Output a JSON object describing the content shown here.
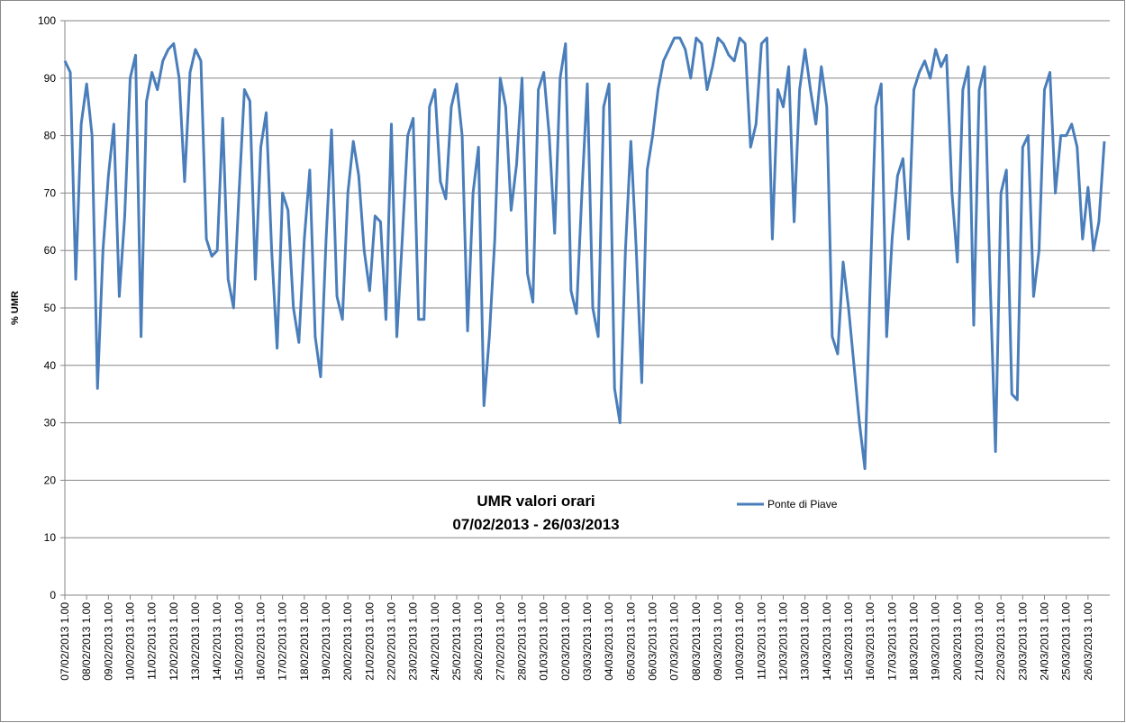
{
  "chart_data": {
    "type": "line",
    "title": "UMR valori orari",
    "subtitle": "07/02/2013 - 26/03/2013",
    "y_label": "% UMR",
    "ylim": [
      0,
      100
    ],
    "yticks": [
      0,
      10,
      20,
      30,
      40,
      50,
      60,
      70,
      80,
      90,
      100
    ],
    "grid": true,
    "legend": "center",
    "categories": [
      "07/02/2013 1.00",
      null,
      null,
      null,
      "08/02/2013 1.00",
      null,
      null,
      null,
      "09/02/2013 1.00",
      null,
      null,
      null,
      "10/02/2013 1.00",
      null,
      null,
      null,
      "11/02/2013 1.00",
      null,
      null,
      null,
      "12/02/2013 1.00",
      null,
      null,
      null,
      "13/02/2013 1.00",
      null,
      null,
      null,
      "14/02/2013 1.00",
      null,
      null,
      null,
      "15/02/2013 1.00",
      null,
      null,
      null,
      "16/02/2013 1.00",
      null,
      null,
      null,
      "17/02/2013 1.00",
      null,
      null,
      null,
      "18/02/2013 1.00",
      null,
      null,
      null,
      "19/02/2013 1.00",
      null,
      null,
      null,
      "20/02/2013 1.00",
      null,
      null,
      null,
      "21/02/2013 1.00",
      null,
      null,
      null,
      "22/02/2013 1.00",
      null,
      null,
      null,
      "23/02/2013 1.00",
      null,
      null,
      null,
      "24/02/2013 1.00",
      null,
      null,
      null,
      "25/02/2013 1.00",
      null,
      null,
      null,
      "26/02/2013 1.00",
      null,
      null,
      null,
      "27/02/2013 1.00",
      null,
      null,
      null,
      "28/02/2013 1.00",
      null,
      null,
      null,
      "01/03/2013 1.00",
      null,
      null,
      null,
      "02/03/2013 1.00",
      null,
      null,
      null,
      "03/03/2013 1.00",
      null,
      null,
      null,
      "04/03/2013 1.00",
      null,
      null,
      null,
      "05/03/2013 1.00",
      null,
      null,
      null,
      "06/03/2013 1.00",
      null,
      null,
      null,
      "07/03/2013 1.00",
      null,
      null,
      null,
      "08/03/2013 1.00",
      null,
      null,
      null,
      "09/03/2013 1.00",
      null,
      null,
      null,
      "10/03/2013 1.00",
      null,
      null,
      null,
      "11/03/2013 1.00",
      null,
      null,
      null,
      "12/03/2013 1.00",
      null,
      null,
      null,
      "13/03/2013 1.00",
      null,
      null,
      null,
      "14/03/2013 1.00",
      null,
      null,
      null,
      "15/03/2013 1.00",
      null,
      null,
      null,
      "16/03/2013 1.00",
      null,
      null,
      null,
      "17/03/2013 1.00",
      null,
      null,
      null,
      "18/03/2013 1.00",
      null,
      null,
      null,
      "19/03/2013 1.00",
      null,
      null,
      null,
      "20/03/2013 1.00",
      null,
      null,
      null,
      "21/03/2013 1.00",
      null,
      null,
      null,
      "22/03/2013 1.00",
      null,
      null,
      null,
      "23/03/2013 1.00",
      null,
      null,
      null,
      "24/03/2013 1.00",
      null,
      null,
      null,
      "25/03/2013 1.00",
      null,
      null,
      null,
      "26/03/2013 1.00",
      null,
      null,
      null
    ],
    "series": [
      {
        "name": "Ponte di Piave",
        "color": "#4a7ebb",
        "values": [
          93,
          91,
          55,
          82,
          89,
          80,
          36,
          60,
          73,
          82,
          52,
          66,
          90,
          94,
          45,
          86,
          91,
          88,
          93,
          95,
          96,
          90,
          72,
          91,
          95,
          93,
          62,
          59,
          60,
          83,
          55,
          50,
          70,
          88,
          86,
          55,
          78,
          84,
          60,
          43,
          70,
          67,
          50,
          44,
          62,
          74,
          45,
          38,
          62,
          81,
          52,
          48,
          70,
          79,
          73,
          60,
          53,
          66,
          65,
          48,
          82,
          45,
          62,
          80,
          83,
          48,
          48,
          85,
          88,
          72,
          69,
          85,
          89,
          80,
          46,
          70,
          78,
          33,
          45,
          62,
          90,
          85,
          67,
          75,
          90,
          56,
          51,
          88,
          91,
          80,
          63,
          90,
          96,
          53,
          49,
          70,
          89,
          50,
          45,
          85,
          89,
          36,
          30,
          60,
          79,
          60,
          37,
          74,
          80,
          88,
          93,
          95,
          97,
          97,
          95,
          90,
          97,
          96,
          88,
          92,
          97,
          96,
          94,
          93,
          97,
          96,
          78,
          82,
          96,
          97,
          62,
          88,
          85,
          92,
          65,
          88,
          95,
          88,
          82,
          92,
          85,
          45,
          42,
          58,
          50,
          40,
          30,
          22,
          55,
          85,
          89,
          45,
          62,
          73,
          76,
          62,
          88,
          91,
          93,
          90,
          95,
          92,
          94,
          70,
          58,
          88,
          92,
          47,
          88,
          92,
          55,
          25,
          70,
          74,
          35,
          34,
          78,
          80,
          52,
          60,
          88,
          91,
          70,
          80,
          80,
          82,
          78,
          62,
          71,
          60,
          65,
          79
        ]
      }
    ]
  }
}
